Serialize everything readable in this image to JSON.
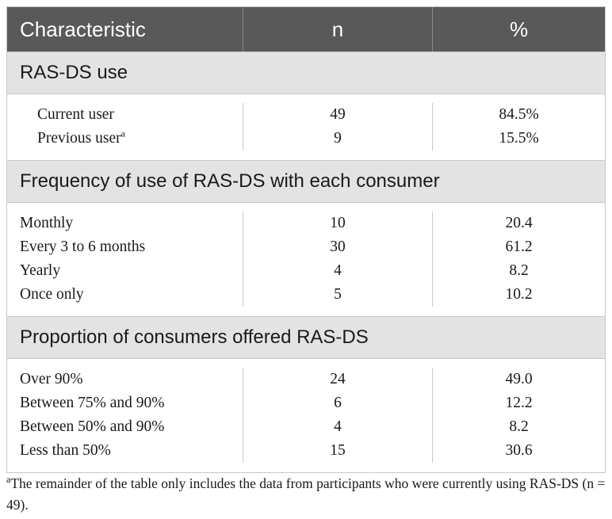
{
  "table": {
    "header": {
      "characteristic": "Characteristic",
      "n": "n",
      "pct": "%"
    },
    "sections": [
      {
        "title": "RAS-DS use",
        "rows": [
          {
            "label": "Current user",
            "sup": "",
            "n": "49",
            "pct": "84.5%"
          },
          {
            "label": "Previous user",
            "sup": "a",
            "n": "9",
            "pct": "15.5%"
          }
        ]
      },
      {
        "title": "Frequency of use of RAS-DS with each consumer",
        "rows": [
          {
            "label": "Monthly",
            "n": "10",
            "pct": "20.4"
          },
          {
            "label": "Every 3 to 6 months",
            "n": "30",
            "pct": "61.2"
          },
          {
            "label": "Yearly",
            "n": "4",
            "pct": "8.2"
          },
          {
            "label": "Once only",
            "n": "5",
            "pct": "10.2"
          }
        ]
      },
      {
        "title": "Proportion of consumers offered RAS-DS",
        "rows": [
          {
            "label": "Over 90%",
            "n": "24",
            "pct": "49.0"
          },
          {
            "label": "Between 75% and 90%",
            "n": "6",
            "pct": "12.2"
          },
          {
            "label": "Between 50% and 90%",
            "n": "4",
            "pct": "8.2"
          },
          {
            "label": "Less than 50%",
            "n": "15",
            "pct": "30.6"
          }
        ]
      }
    ]
  },
  "footnote": {
    "marker": "a",
    "text": "The remainder of the table only includes the data from participants who were currently using RAS-DS (n = 49)."
  }
}
